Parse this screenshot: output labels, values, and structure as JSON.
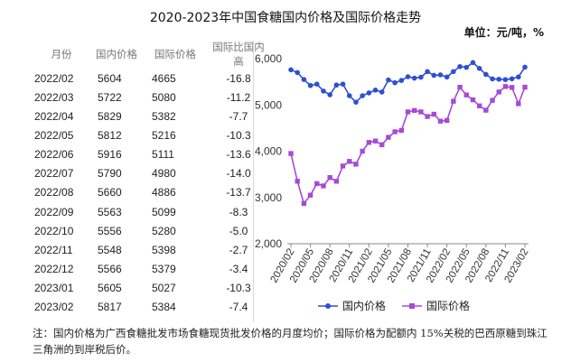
{
  "title": "2020-2023年中国食糖国内价格及国际价格走势",
  "unit": "单位：元/吨，%",
  "table": {
    "headers": [
      "月份",
      "国内价格",
      "国际价格",
      "国际比国内高"
    ],
    "rows": [
      [
        "2022/02",
        "5604",
        "4665",
        "-16.8"
      ],
      [
        "2022/03",
        "5722",
        "5080",
        "-11.2"
      ],
      [
        "2022/04",
        "5829",
        "5382",
        "-7.7"
      ],
      [
        "2022/05",
        "5812",
        "5216",
        "-10.3"
      ],
      [
        "2022/06",
        "5916",
        "5111",
        "-13.6"
      ],
      [
        "2022/07",
        "5790",
        "4980",
        "-14.0"
      ],
      [
        "2022/08",
        "5660",
        "4886",
        "-13.7"
      ],
      [
        "2022/09",
        "5563",
        "5099",
        "-8.3"
      ],
      [
        "2022/10",
        "5556",
        "5280",
        "-5.0"
      ],
      [
        "2022/11",
        "5548",
        "5398",
        "-2.7"
      ],
      [
        "2022/12",
        "5566",
        "5379",
        "-3.4"
      ],
      [
        "2023/01",
        "5605",
        "5027",
        "-10.3"
      ],
      [
        "2023/02",
        "5817",
        "5384",
        "-7.4"
      ]
    ]
  },
  "note": "注：国内价格为广西食糖批发市场食糖现货批发价格的月度均价；国际价格为配额内 15%关税的巴西原糖到珠江三角洲的到岸税后价。",
  "chart_data": {
    "type": "line",
    "ylim": [
      2000,
      6000
    ],
    "yticks": [
      "2,000",
      "3,000",
      "4,000",
      "5,000",
      "6,000"
    ],
    "xticks": [
      "2020/02",
      "2020/05",
      "2020/08",
      "2020/11",
      "2021/02",
      "2021/05",
      "2021/08",
      "2021/11",
      "2022/02",
      "2022/05",
      "2022/08",
      "2022/11",
      "2023/02"
    ],
    "colors": {
      "domestic": "#2e4fd1",
      "international": "#a64ad6"
    },
    "series": [
      {
        "name": "国内价格",
        "values": [
          5760,
          5700,
          5550,
          5420,
          5450,
          5300,
          5220,
          5430,
          5450,
          5200,
          5060,
          5200,
          5260,
          5320,
          5280,
          5540,
          5480,
          5530,
          5610,
          5580,
          5600,
          5720,
          5640,
          5650,
          5604,
          5722,
          5829,
          5812,
          5916,
          5790,
          5660,
          5563,
          5556,
          5548,
          5566,
          5605,
          5817
        ]
      },
      {
        "name": "国际价格",
        "values": [
          3950,
          3350,
          2870,
          3050,
          3300,
          3250,
          3430,
          3350,
          3680,
          3780,
          3720,
          4000,
          4190,
          4220,
          4140,
          4300,
          4420,
          4450,
          4850,
          4880,
          4850,
          4750,
          4800,
          4650,
          4665,
          5080,
          5382,
          5216,
          5111,
          4980,
          4886,
          5099,
          5280,
          5398,
          5379,
          5027,
          5384
        ]
      }
    ]
  }
}
